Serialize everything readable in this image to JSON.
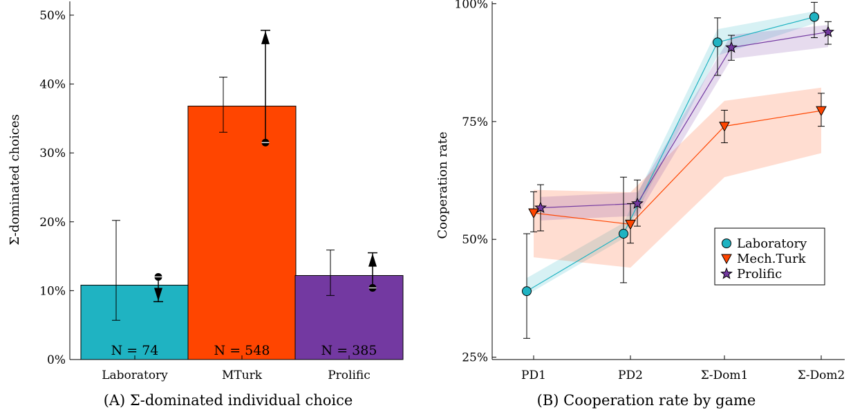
{
  "colors": {
    "laboratory": "#1fb3c2",
    "mturk": "#ff4500",
    "prolific": "#7339a1",
    "text": "#000000"
  },
  "chart_data": [
    {
      "type": "bar",
      "caption": "(A) Σ-dominated individual choice",
      "ylabel": "Σ-dominated choices",
      "ylim": [
        0,
        52
      ],
      "yticks": [
        0,
        10,
        20,
        30,
        40,
        50
      ],
      "ytick_labels": [
        "0%",
        "10%",
        "20%",
        "30%",
        "40%",
        "50%"
      ],
      "categories": [
        "Laboratory",
        "MTurk",
        "Prolific"
      ],
      "values": [
        10.8,
        36.8,
        12.2
      ],
      "error_bars": [
        {
          "low": 5.7,
          "high": 20.2
        },
        {
          "low": 33.0,
          "high": 41.0
        },
        {
          "low": 9.3,
          "high": 15.9
        }
      ],
      "markers": [
        {
          "start": 12.0,
          "end": 8.4,
          "direction": "down"
        },
        {
          "start": 31.5,
          "end": 47.8,
          "direction": "up"
        },
        {
          "start": 10.4,
          "end": 15.5,
          "direction": "up"
        }
      ],
      "n_labels": [
        "N = 74",
        "N = 548",
        "N = 385"
      ]
    },
    {
      "type": "line",
      "caption": "(B) Cooperation rate by game",
      "ylabel": "Cooperation rate",
      "ylim": [
        24.5,
        100.5
      ],
      "yticks": [
        25,
        50,
        75,
        100
      ],
      "ytick_labels": [
        "25%",
        "50%",
        "75%",
        "100%"
      ],
      "categories": [
        "PD1",
        "PD2",
        "Σ-Dom1",
        "Σ-Dom2"
      ],
      "legend_position": "center-right",
      "series": [
        {
          "name": "Laboratory",
          "color_key": "laboratory",
          "marker": "circle",
          "values": [
            39.0,
            51.2,
            91.8,
            97.2
          ],
          "err_low": [
            29.0,
            40.8,
            84.8,
            92.8
          ],
          "err_high": [
            51.2,
            63.2,
            97.0,
            100.3
          ],
          "band_low": [
            38.2,
            50.2,
            89.0,
            95.8
          ],
          "band_high": [
            41.8,
            53.5,
            94.6,
            98.4
          ]
        },
        {
          "name": "Mech.Turk",
          "color_key": "mturk",
          "marker": "triangle-down",
          "values": [
            55.6,
            53.2,
            74.0,
            77.3
          ],
          "err_low": [
            51.6,
            49.2,
            70.5,
            74.0
          ],
          "err_high": [
            60.1,
            57.6,
            77.4,
            81.0
          ],
          "band_low": [
            46.2,
            44.0,
            63.2,
            68.3
          ],
          "band_high": [
            60.5,
            60.0,
            79.4,
            82.2
          ]
        },
        {
          "name": "Prolific",
          "color_key": "prolific",
          "marker": "star",
          "values": [
            56.7,
            57.6,
            90.7,
            94.0
          ],
          "err_low": [
            51.8,
            52.8,
            88.0,
            91.4
          ],
          "err_high": [
            61.6,
            62.6,
            93.3,
            96.2
          ],
          "band_low": [
            54.0,
            55.0,
            88.3,
            90.8
          ],
          "band_high": [
            59.0,
            60.0,
            93.4,
            95.5
          ]
        }
      ]
    }
  ]
}
